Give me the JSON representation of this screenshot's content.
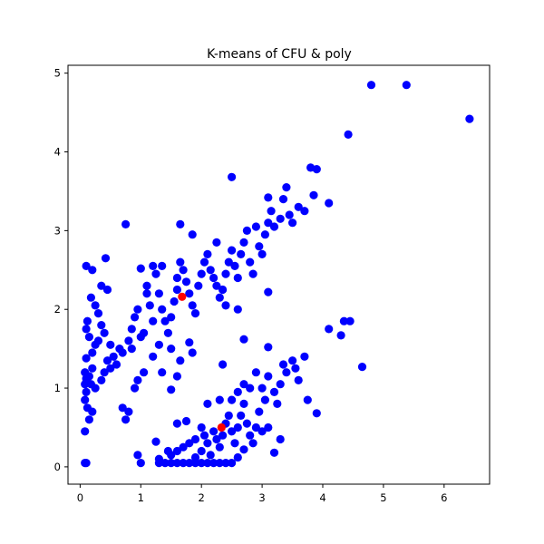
{
  "chart_data": {
    "type": "scatter",
    "title": "K-means of CFU & poly",
    "xlabel": "",
    "ylabel": "",
    "xlim": [
      -0.2,
      6.75
    ],
    "ylim": [
      -0.22,
      5.1
    ],
    "xticks": [
      0,
      1,
      2,
      3,
      4,
      5,
      6
    ],
    "yticks": [
      0,
      1,
      2,
      3,
      4,
      5
    ],
    "grid": false,
    "series": [
      {
        "color": "#0000ff",
        "points": [
          [
            0.08,
            0.05
          ],
          [
            0.1,
            0.05
          ],
          [
            0.08,
            0.45
          ],
          [
            0.15,
            0.6
          ],
          [
            0.2,
            0.7
          ],
          [
            0.12,
            0.75
          ],
          [
            0.08,
            0.85
          ],
          [
            0.1,
            0.95
          ],
          [
            0.25,
            1.0
          ],
          [
            0.08,
            1.05
          ],
          [
            0.1,
            1.12
          ],
          [
            0.15,
            1.15
          ],
          [
            0.08,
            1.2
          ],
          [
            0.2,
            1.25
          ],
          [
            0.35,
            1.1
          ],
          [
            0.4,
            1.2
          ],
          [
            0.5,
            1.25
          ],
          [
            0.45,
            1.35
          ],
          [
            0.55,
            1.4
          ],
          [
            0.6,
            1.3
          ],
          [
            0.65,
            1.5
          ],
          [
            0.7,
            1.45
          ],
          [
            0.5,
            1.55
          ],
          [
            0.3,
            1.6
          ],
          [
            0.15,
            1.65
          ],
          [
            0.1,
            1.75
          ],
          [
            0.12,
            1.85
          ],
          [
            0.2,
            1.45
          ],
          [
            0.25,
            1.55
          ],
          [
            0.35,
            1.8
          ],
          [
            0.4,
            1.7
          ],
          [
            0.3,
            1.95
          ],
          [
            0.25,
            2.05
          ],
          [
            0.18,
            2.15
          ],
          [
            0.45,
            2.25
          ],
          [
            0.35,
            2.3
          ],
          [
            0.1,
            2.55
          ],
          [
            0.2,
            2.5
          ],
          [
            0.42,
            2.65
          ],
          [
            0.75,
            3.08
          ],
          [
            0.1,
            1.38
          ],
          [
            0.18,
            1.05
          ],
          [
            0.8,
            1.6
          ],
          [
            0.85,
            1.75
          ],
          [
            0.9,
            1.9
          ],
          [
            0.95,
            2.0
          ],
          [
            1.0,
            1.65
          ],
          [
            1.05,
            1.7
          ],
          [
            1.1,
            2.2
          ],
          [
            1.15,
            2.05
          ],
          [
            1.2,
            1.85
          ],
          [
            1.0,
            2.52
          ],
          [
            1.2,
            2.55
          ],
          [
            1.3,
            2.2
          ],
          [
            1.35,
            2.0
          ],
          [
            1.4,
            1.85
          ],
          [
            1.45,
            1.7
          ],
          [
            1.5,
            1.9
          ],
          [
            1.55,
            2.1
          ],
          [
            1.6,
            2.25
          ],
          [
            1.6,
            2.4
          ],
          [
            1.65,
            2.6
          ],
          [
            1.7,
            2.5
          ],
          [
            1.75,
            2.35
          ],
          [
            1.8,
            2.2
          ],
          [
            1.85,
            2.05
          ],
          [
            1.9,
            1.95
          ],
          [
            1.95,
            2.3
          ],
          [
            2.0,
            2.45
          ],
          [
            2.05,
            2.6
          ],
          [
            2.1,
            2.7
          ],
          [
            2.15,
            2.5
          ],
          [
            2.2,
            2.4
          ],
          [
            2.25,
            2.3
          ],
          [
            2.3,
            2.15
          ],
          [
            2.35,
            2.25
          ],
          [
            2.4,
            2.45
          ],
          [
            2.45,
            2.6
          ],
          [
            2.5,
            2.75
          ],
          [
            2.55,
            2.55
          ],
          [
            2.6,
            2.4
          ],
          [
            2.65,
            2.7
          ],
          [
            2.7,
            2.85
          ],
          [
            2.75,
            3.0
          ],
          [
            2.8,
            2.6
          ],
          [
            2.85,
            2.45
          ],
          [
            2.9,
            3.05
          ],
          [
            3.0,
            2.7
          ],
          [
            3.05,
            2.95
          ],
          [
            3.1,
            3.1
          ],
          [
            3.15,
            3.25
          ],
          [
            3.2,
            3.05
          ],
          [
            3.3,
            3.15
          ],
          [
            3.35,
            3.4
          ],
          [
            3.4,
            3.55
          ],
          [
            3.45,
            3.2
          ],
          [
            3.5,
            3.1
          ],
          [
            3.6,
            3.3
          ],
          [
            3.7,
            3.25
          ],
          [
            3.8,
            3.8
          ],
          [
            3.85,
            3.45
          ],
          [
            3.9,
            3.78
          ],
          [
            4.1,
            3.35
          ],
          [
            2.5,
            3.68
          ],
          [
            3.1,
            3.42
          ],
          [
            1.65,
            3.08
          ],
          [
            1.85,
            2.95
          ],
          [
            2.25,
            2.85
          ],
          [
            1.25,
            2.45
          ],
          [
            1.1,
            2.3
          ],
          [
            1.35,
            2.55
          ],
          [
            2.95,
            2.8
          ],
          [
            3.1,
            2.22
          ],
          [
            2.6,
            2.0
          ],
          [
            2.4,
            2.05
          ],
          [
            1.8,
            1.58
          ],
          [
            1.85,
            1.45
          ],
          [
            1.5,
            1.5
          ],
          [
            1.3,
            1.55
          ],
          [
            0.85,
            1.5
          ],
          [
            1.2,
            1.4
          ],
          [
            1.35,
            1.2
          ],
          [
            1.5,
            0.98
          ],
          [
            1.65,
            1.35
          ],
          [
            1.6,
            1.15
          ],
          [
            0.75,
            0.6
          ],
          [
            0.7,
            0.75
          ],
          [
            0.8,
            0.7
          ],
          [
            0.9,
            1.0
          ],
          [
            0.95,
            1.1
          ],
          [
            1.05,
            1.2
          ],
          [
            1.7,
            0.05
          ],
          [
            1.8,
            0.05
          ],
          [
            1.9,
            0.05
          ],
          [
            2.0,
            0.05
          ],
          [
            2.1,
            0.05
          ],
          [
            2.2,
            0.05
          ],
          [
            2.3,
            0.05
          ],
          [
            2.4,
            0.05
          ],
          [
            2.5,
            0.05
          ],
          [
            1.3,
            0.05
          ],
          [
            1.4,
            0.05
          ],
          [
            1.5,
            0.05
          ],
          [
            1.6,
            0.05
          ],
          [
            1.0,
            0.05
          ],
          [
            0.95,
            0.15
          ],
          [
            1.3,
            0.1
          ],
          [
            1.5,
            0.15
          ],
          [
            1.6,
            0.2
          ],
          [
            1.7,
            0.25
          ],
          [
            1.8,
            0.3
          ],
          [
            1.9,
            0.35
          ],
          [
            2.0,
            0.2
          ],
          [
            2.05,
            0.4
          ],
          [
            2.1,
            0.3
          ],
          [
            2.15,
            0.15
          ],
          [
            2.2,
            0.45
          ],
          [
            2.25,
            0.35
          ],
          [
            2.3,
            0.25
          ],
          [
            2.35,
            0.4
          ],
          [
            2.4,
            0.55
          ],
          [
            2.45,
            0.65
          ],
          [
            2.5,
            0.45
          ],
          [
            2.55,
            0.3
          ],
          [
            2.6,
            0.5
          ],
          [
            2.65,
            0.65
          ],
          [
            2.7,
            0.8
          ],
          [
            2.75,
            0.55
          ],
          [
            2.8,
            0.4
          ],
          [
            2.85,
            0.3
          ],
          [
            2.9,
            0.5
          ],
          [
            3.0,
            0.45
          ],
          [
            3.1,
            0.5
          ],
          [
            3.2,
            0.18
          ],
          [
            3.3,
            0.35
          ],
          [
            1.6,
            0.55
          ],
          [
            1.75,
            0.58
          ],
          [
            2.1,
            0.8
          ],
          [
            2.3,
            0.85
          ],
          [
            2.35,
            1.3
          ],
          [
            2.6,
            0.95
          ],
          [
            2.7,
            1.05
          ],
          [
            2.8,
            1.0
          ],
          [
            2.9,
            1.2
          ],
          [
            3.0,
            1.0
          ],
          [
            3.05,
            0.85
          ],
          [
            3.1,
            1.15
          ],
          [
            3.2,
            0.95
          ],
          [
            3.25,
            0.8
          ],
          [
            3.3,
            1.05
          ],
          [
            3.35,
            1.3
          ],
          [
            3.4,
            1.2
          ],
          [
            3.5,
            1.35
          ],
          [
            3.55,
            1.25
          ],
          [
            3.6,
            1.1
          ],
          [
            3.7,
            1.4
          ],
          [
            3.75,
            0.85
          ],
          [
            3.9,
            0.68
          ],
          [
            3.1,
            1.52
          ],
          [
            2.7,
            1.62
          ],
          [
            4.1,
            1.75
          ],
          [
            4.35,
            1.85
          ],
          [
            4.45,
            1.85
          ],
          [
            4.3,
            1.67
          ],
          [
            4.65,
            1.27
          ],
          [
            1.25,
            0.32
          ],
          [
            1.45,
            0.2
          ],
          [
            1.9,
            0.12
          ],
          [
            2.0,
            0.5
          ],
          [
            2.6,
            0.12
          ],
          [
            2.7,
            0.22
          ],
          [
            2.95,
            0.7
          ],
          [
            2.5,
            0.85
          ],
          [
            4.42,
            4.22
          ],
          [
            4.8,
            4.85
          ],
          [
            5.38,
            4.85
          ],
          [
            6.42,
            4.42
          ]
        ]
      },
      {
        "color": "#ff0000",
        "points": [
          [
            1.68,
            2.16
          ],
          [
            2.33,
            0.5
          ]
        ]
      }
    ]
  }
}
